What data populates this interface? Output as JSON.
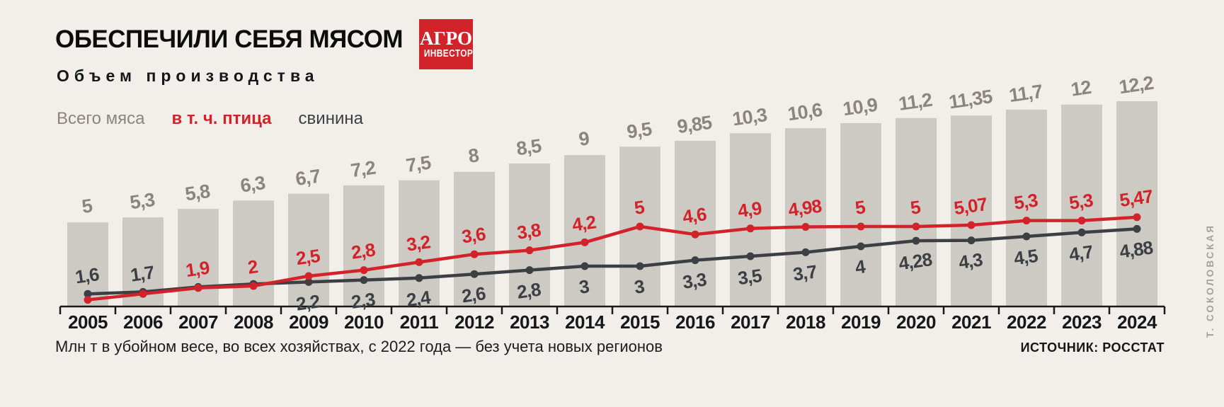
{
  "header": {
    "title": "ОБЕСПЕЧИЛИ СЕБЯ МЯСОМ",
    "subtitle": "Объем производства"
  },
  "logo": {
    "line1": "АГРО",
    "line2": "ИНВЕСТОР"
  },
  "legend": {
    "items": [
      {
        "label": "Всего мяса",
        "series": "total",
        "color": "#8a857f"
      },
      {
        "label": "в т. ч. птица",
        "series": "poultry",
        "color": "#d2232a"
      },
      {
        "label": "свинина",
        "series": "pork",
        "color": "#3c4045"
      }
    ]
  },
  "footer": {
    "note": "Млн т в убойном весе, во всех хозяйствах, с 2022 года — без учета новых регионов",
    "source": "ИСТОЧНИК: РОССТАТ",
    "credit": "Т. СОКОЛОВСКАЯ"
  },
  "colors": {
    "background": "#f2efea",
    "bar": "#cdcac4",
    "bar_label": "#8a857f",
    "poultry": "#d2232a",
    "pork": "#3c4045",
    "axis": "#1a1a1a",
    "year_label": "#17181c"
  },
  "chart_data": {
    "type": "bar+line",
    "title": "Объем производства",
    "units": "млн т",
    "ylim": [
      0,
      13
    ],
    "legend_position": "top-left",
    "categories": [
      "2005",
      "2006",
      "2007",
      "2008",
      "2009",
      "2010",
      "2011",
      "2012",
      "2013",
      "2014",
      "2015",
      "2016",
      "2017",
      "2018",
      "2019",
      "2020",
      "2021",
      "2022",
      "2023",
      "2024"
    ],
    "series": [
      {
        "name": "Всего мяса",
        "type": "bar",
        "color": "#cdcac4",
        "values": [
          5,
          5.3,
          5.8,
          6.3,
          6.7,
          7.2,
          7.5,
          8,
          8.5,
          9,
          9.5,
          9.85,
          10.3,
          10.6,
          10.9,
          11.2,
          11.35,
          11.7,
          12,
          12.2
        ],
        "labels": [
          "5",
          "5,3",
          "5,8",
          "6,3",
          "6,7",
          "7,2",
          "7,5",
          "8",
          "8,5",
          "9",
          "9,5",
          "9,85",
          "10,3",
          "10,6",
          "10,9",
          "11,2",
          "11,35",
          "11,7",
          "12",
          "12,2"
        ]
      },
      {
        "name": "в т. ч. птица",
        "type": "line",
        "color": "#d2232a",
        "values": [
          1.3,
          1.6,
          1.9,
          2,
          2.5,
          2.8,
          3.2,
          3.6,
          3.8,
          4.2,
          5,
          4.6,
          4.9,
          4.98,
          5,
          5,
          5.07,
          5.3,
          5.3,
          5.47
        ],
        "labels": [
          null,
          null,
          "1,9",
          "2",
          "2,5",
          "2,8",
          "3,2",
          "3,6",
          "3,8",
          "4,2",
          "5",
          "4,6",
          "4,9",
          "4,98",
          "5",
          "5",
          "5,07",
          "5,3",
          "5,3",
          "5,47"
        ]
      },
      {
        "name": "свинина",
        "type": "line",
        "color": "#3c4045",
        "values": [
          1.6,
          1.7,
          1.95,
          2.1,
          2.2,
          2.3,
          2.4,
          2.6,
          2.8,
          3,
          3,
          3.3,
          3.5,
          3.7,
          4,
          4.28,
          4.3,
          4.5,
          4.7,
          4.88
        ],
        "labels": [
          "1,6",
          "1,7",
          null,
          null,
          "2,2",
          "2,3",
          "2,4",
          "2,6",
          "2,8",
          "3",
          "3",
          "3,3",
          "3,5",
          "3,7",
          "4",
          "4,28",
          "4,3",
          "4,5",
          "4,7",
          "4,88"
        ]
      }
    ]
  }
}
